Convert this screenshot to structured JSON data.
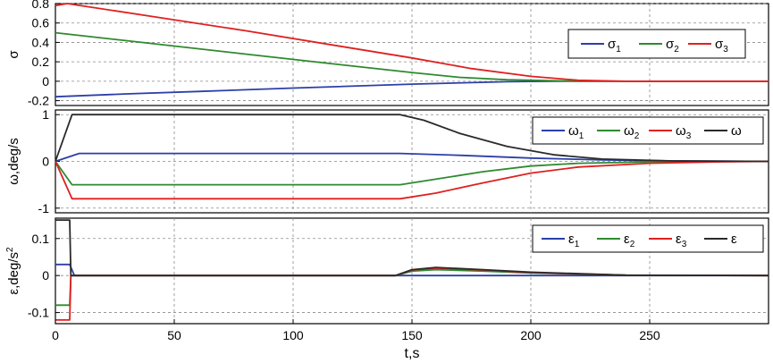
{
  "chart_data": [
    {
      "type": "line",
      "ylabel": "σ",
      "xlim": [
        0,
        300
      ],
      "ylim": [
        -0.25,
        0.8
      ],
      "yticks": [
        "0.8",
        "0.6",
        "0.4",
        "0.2",
        "0",
        "-0.2"
      ],
      "ytick_values": [
        0.8,
        0.6,
        0.4,
        0.2,
        0,
        -0.2
      ],
      "legend_position": "top-right",
      "grid": true,
      "series": [
        {
          "name": "σ",
          "sub": "1",
          "color": "#2c3fa8",
          "x": [
            0,
            30,
            60,
            100,
            150,
            190,
            210,
            300
          ],
          "y": [
            -0.16,
            -0.13,
            -0.105,
            -0.07,
            -0.03,
            -0.005,
            0,
            0
          ]
        },
        {
          "name": "σ",
          "sub": "2",
          "color": "#2f8a2f",
          "x": [
            0,
            40,
            80,
            120,
            150,
            170,
            190,
            220,
            300
          ],
          "y": [
            0.5,
            0.39,
            0.28,
            0.17,
            0.09,
            0.04,
            0.015,
            0,
            0
          ]
        },
        {
          "name": "σ",
          "sub": "3",
          "color": "#e02020",
          "x": [
            0,
            5,
            40,
            80,
            120,
            150,
            175,
            200,
            220,
            240,
            300
          ],
          "y": [
            0.78,
            0.8,
            0.67,
            0.52,
            0.36,
            0.24,
            0.13,
            0.05,
            0.01,
            0,
            0
          ]
        }
      ]
    },
    {
      "type": "line",
      "ylabel": "ω,deg/s",
      "xlim": [
        0,
        300
      ],
      "ylim": [
        -1.1,
        1.1
      ],
      "yticks": [
        "1",
        "0",
        "-1"
      ],
      "ytick_values": [
        1,
        0,
        -1
      ],
      "legend_position": "top-right",
      "grid": true,
      "series": [
        {
          "name": "ω",
          "sub": "1",
          "color": "#2c3fa8",
          "x": [
            0,
            10,
            145,
            170,
            200,
            230,
            260,
            300
          ],
          "y": [
            0,
            0.17,
            0.17,
            0.13,
            0.07,
            0.03,
            0.01,
            0
          ]
        },
        {
          "name": "ω",
          "sub": "2",
          "color": "#2f8a2f",
          "x": [
            0,
            7,
            145,
            160,
            180,
            200,
            220,
            250,
            300
          ],
          "y": [
            0,
            -0.5,
            -0.5,
            -0.38,
            -0.22,
            -0.1,
            -0.04,
            -0.01,
            0
          ]
        },
        {
          "name": "ω",
          "sub": "3",
          "color": "#e02020",
          "x": [
            0,
            7,
            145,
            160,
            180,
            200,
            220,
            250,
            280,
            300
          ],
          "y": [
            0,
            -0.8,
            -0.8,
            -0.68,
            -0.46,
            -0.25,
            -0.12,
            -0.04,
            -0.01,
            0
          ]
        },
        {
          "name": "ω",
          "sub": "",
          "color": "#2a2a2a",
          "x": [
            0,
            7,
            145,
            155,
            170,
            190,
            210,
            230,
            260,
            300
          ],
          "y": [
            0,
            1,
            1,
            0.88,
            0.6,
            0.32,
            0.14,
            0.05,
            0.01,
            0
          ]
        }
      ]
    },
    {
      "type": "line",
      "ylabel": "ε,deg/s",
      "ylabel_sup": "2",
      "xlabel": "t,s",
      "xlim": [
        0,
        300
      ],
      "ylim": [
        -0.13,
        0.155
      ],
      "yticks": [
        "0.1",
        "0",
        "-0.1"
      ],
      "ytick_values": [
        0.1,
        0,
        -0.1
      ],
      "xticks": [
        "0",
        "50",
        "100",
        "150",
        "200",
        "250"
      ],
      "xtick_values": [
        0,
        50,
        100,
        150,
        200,
        250
      ],
      "legend_position": "top-right",
      "grid": true,
      "series": [
        {
          "name": "ε",
          "sub": "1",
          "color": "#2c3fa8",
          "x": [
            0,
            6,
            8,
            12,
            300
          ],
          "y": [
            0.03,
            0.03,
            0,
            0,
            0
          ]
        },
        {
          "name": "ε",
          "sub": "2",
          "color": "#2f8a2f",
          "x": [
            0,
            6,
            6.5,
            10,
            143,
            150,
            160,
            180,
            200,
            240,
            300
          ],
          "y": [
            -0.08,
            -0.08,
            0,
            0,
            0,
            0.012,
            0.016,
            0.012,
            0.007,
            0.001,
            0
          ]
        },
        {
          "name": "ε",
          "sub": "3",
          "color": "#e02020",
          "x": [
            0,
            6,
            6.5,
            10,
            143,
            150,
            160,
            180,
            200,
            240,
            300
          ],
          "y": [
            -0.12,
            -0.12,
            0,
            0,
            0,
            0.015,
            0.02,
            0.015,
            0.008,
            0.001,
            0
          ]
        },
        {
          "name": "ε",
          "sub": "",
          "color": "#2a2a2a",
          "x": [
            0,
            6,
            6.5,
            10,
            143,
            150,
            160,
            180,
            200,
            240,
            300
          ],
          "y": [
            0.15,
            0.15,
            0,
            0,
            0,
            0.016,
            0.022,
            0.016,
            0.009,
            0.001,
            0
          ]
        }
      ]
    }
  ]
}
